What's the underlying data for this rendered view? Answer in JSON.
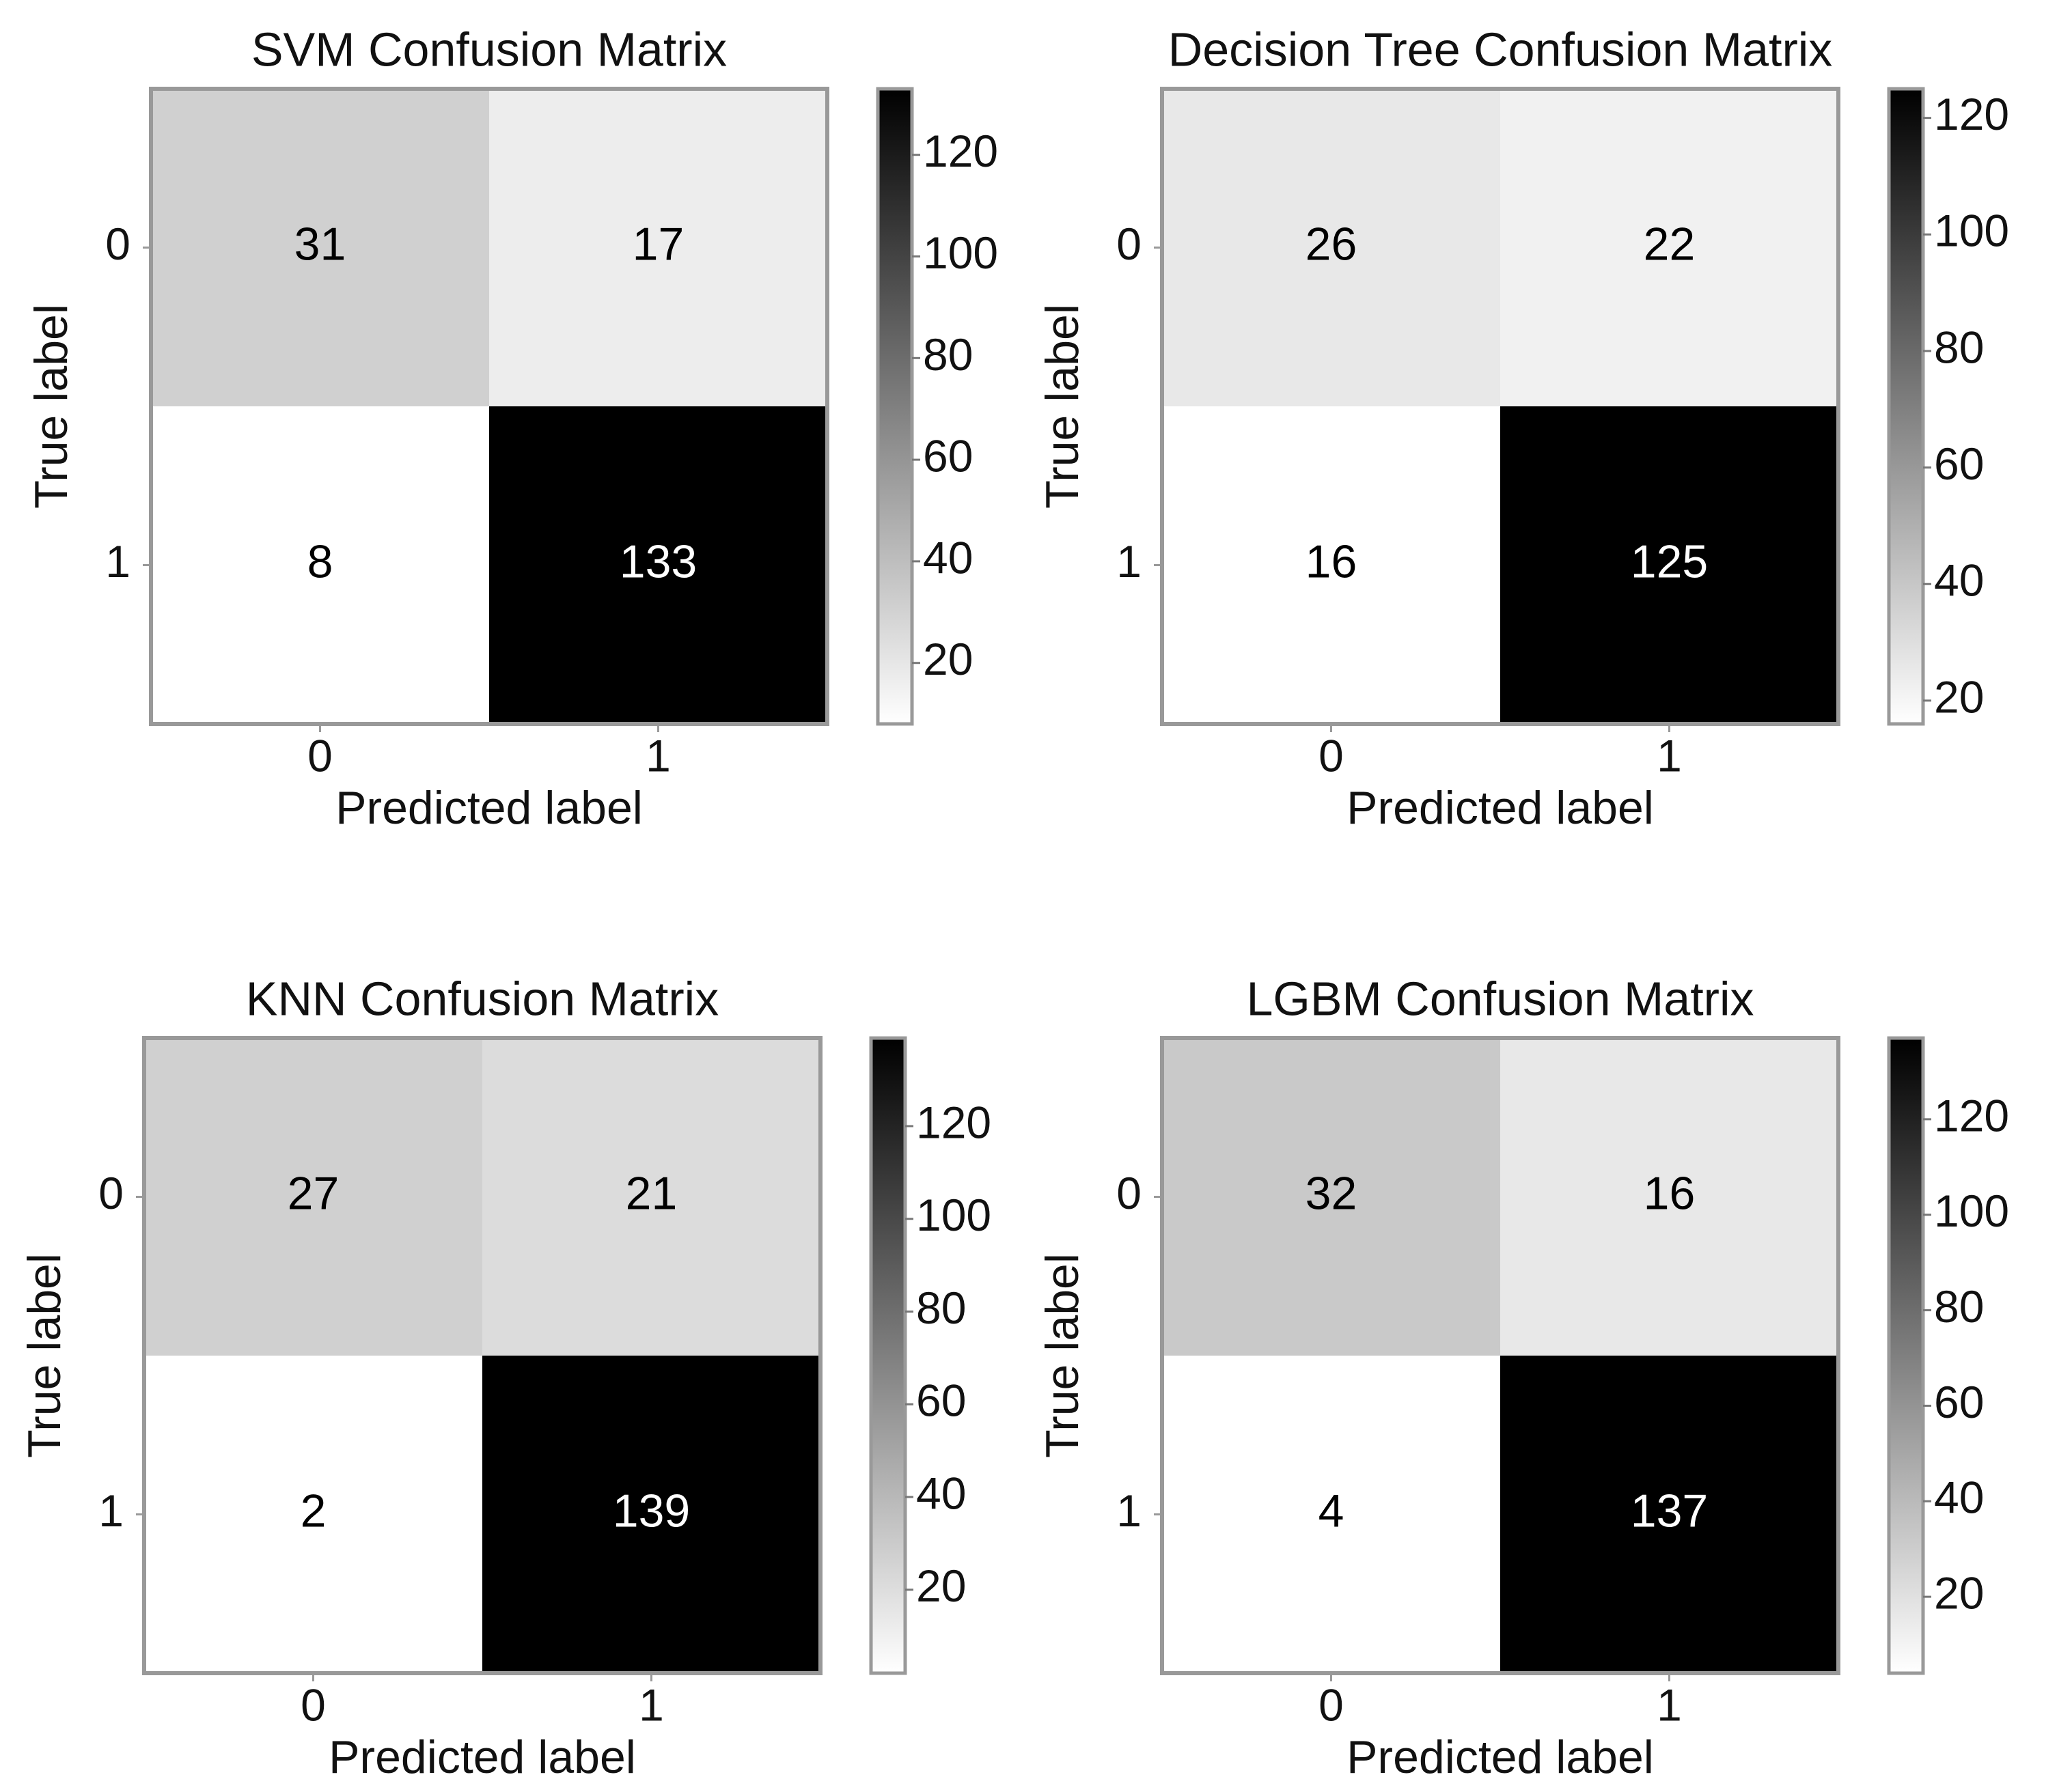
{
  "chart_data": [
    {
      "type": "heatmap",
      "title": "SVM Confusion Matrix",
      "xlabel": "Predicted label",
      "ylabel": "True label",
      "x": [
        "0",
        "1"
      ],
      "y": [
        "0",
        "1"
      ],
      "values": [
        [
          31,
          17
        ],
        [
          8,
          133
        ]
      ],
      "clim": [
        8,
        133
      ],
      "cticks": [
        20,
        40,
        60,
        80,
        100,
        120
      ],
      "colormap": [
        "#ffffff",
        "#000000"
      ]
    },
    {
      "type": "heatmap",
      "title": "Decision Tree Confusion Matrix",
      "xlabel": "Predicted label",
      "ylabel": "True label",
      "x": [
        "0",
        "1"
      ],
      "y": [
        "0",
        "1"
      ],
      "values": [
        [
          26,
          22
        ],
        [
          16,
          125
        ]
      ],
      "clim": [
        16,
        125
      ],
      "cticks": [
        20,
        40,
        60,
        80,
        100,
        120
      ],
      "colormap": [
        "#ffffff",
        "#000000"
      ]
    },
    {
      "type": "heatmap",
      "title": "KNN Confusion Matrix",
      "xlabel": "Predicted label",
      "ylabel": "True label",
      "x": [
        "0",
        "1"
      ],
      "y": [
        "0",
        "1"
      ],
      "values": [
        [
          27,
          21
        ],
        [
          2,
          139
        ]
      ],
      "clim": [
        2,
        139
      ],
      "cticks": [
        20,
        40,
        60,
        80,
        100,
        120
      ],
      "colormap": [
        "#ffffff",
        "#000000"
      ]
    },
    {
      "type": "heatmap",
      "title": "LGBM Confusion Matrix",
      "xlabel": "Predicted label",
      "ylabel": "True label",
      "x": [
        "0",
        "1"
      ],
      "y": [
        "0",
        "1"
      ],
      "values": [
        [
          32,
          16
        ],
        [
          4,
          137
        ]
      ],
      "clim": [
        4,
        137
      ],
      "cticks": [
        20,
        40,
        60,
        80,
        100,
        120
      ],
      "colormap": [
        "#ffffff",
        "#000000"
      ]
    }
  ]
}
